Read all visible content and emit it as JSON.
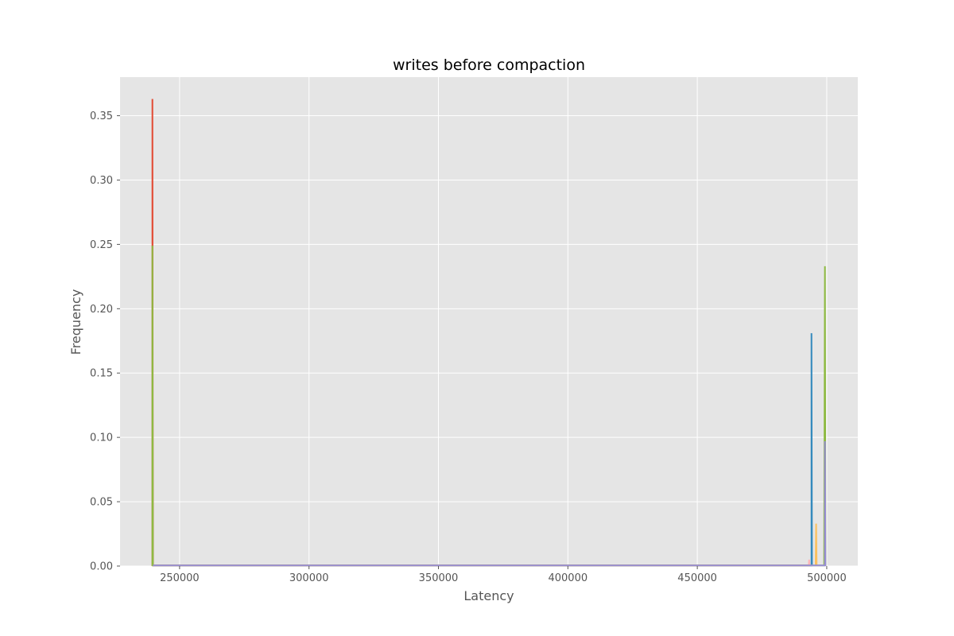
{
  "chart_data": {
    "type": "line",
    "title": "writes before compaction",
    "xlabel": "Latency",
    "ylabel": "Frequency",
    "xlim": [
      227000,
      512000
    ],
    "ylim": [
      0,
      0.38
    ],
    "xticks": [
      250000,
      300000,
      350000,
      400000,
      450000,
      500000
    ],
    "xtick_labels": [
      "250000",
      "300000",
      "350000",
      "400000",
      "450000",
      "500000"
    ],
    "yticks": [
      0.0,
      0.05,
      0.1,
      0.15,
      0.2,
      0.25,
      0.3,
      0.35
    ],
    "ytick_labels": [
      "0.00",
      "0.05",
      "0.10",
      "0.15",
      "0.20",
      "0.25",
      "0.30",
      "0.35"
    ],
    "grid": true,
    "style": "ggplot",
    "colors": {
      "plot_background": "#E5E5E5",
      "grid": "#FFFFFF"
    },
    "series": [
      {
        "color": "#E24A33",
        "x": [
          239500,
          239500,
          239700,
          493500,
          493600
        ],
        "y": [
          0,
          0.363,
          0.0005,
          0.0005,
          0
        ]
      },
      {
        "color": "#348ABD",
        "x": [
          493500,
          494100,
          494100,
          494300
        ],
        "y": [
          0.0005,
          0.0005,
          0.181,
          0
        ]
      },
      {
        "color": "#FFB5B8",
        "x": [
          493000,
          493200,
          493400
        ],
        "y": [
          0,
          0.005,
          0
        ]
      },
      {
        "color": "#FBC15E",
        "x": [
          495700,
          495900,
          496100
        ],
        "y": [
          0,
          0.033,
          0
        ]
      },
      {
        "color": "#8EBA42",
        "x": [
          239500,
          239500,
          239700,
          499000,
          499300,
          499500
        ],
        "y": [
          0,
          0.249,
          0.0005,
          0.0005,
          0.233,
          0
        ]
      },
      {
        "color": "#988ED5",
        "x": [
          239700,
          499000,
          499300,
          499300,
          499500
        ],
        "y": [
          0.0005,
          0.0005,
          0.0005,
          0.097,
          0
        ]
      }
    ]
  }
}
